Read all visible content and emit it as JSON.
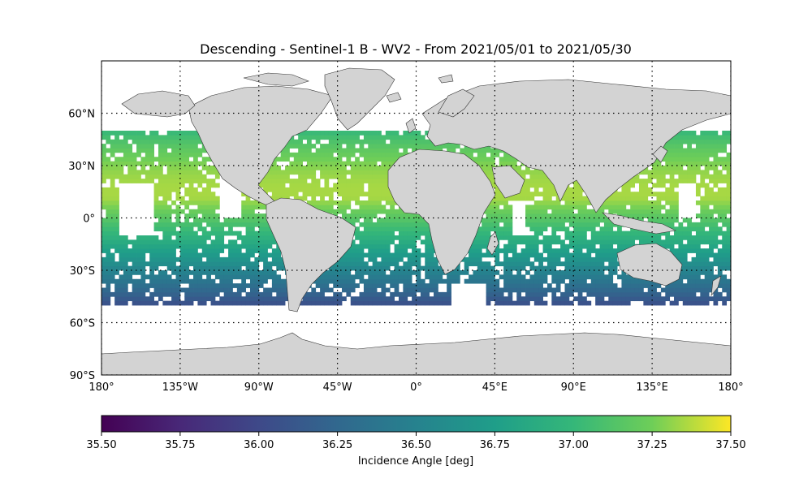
{
  "title": "Descending - Sentinel-1 B - WV2 - From 2021/05/01 to 2021/05/30",
  "map": {
    "lon_range": [
      -180,
      180
    ],
    "lat_range": [
      -90,
      90
    ],
    "lon_ticks": [
      {
        "value": -180,
        "label": "180°"
      },
      {
        "value": -135,
        "label": "135°W"
      },
      {
        "value": -90,
        "label": "90°W"
      },
      {
        "value": -45,
        "label": "45°W"
      },
      {
        "value": 0,
        "label": "0°"
      },
      {
        "value": 45,
        "label": "45°E"
      },
      {
        "value": 90,
        "label": "90°E"
      },
      {
        "value": 135,
        "label": "135°E"
      },
      {
        "value": 180,
        "label": "180°"
      }
    ],
    "lat_ticks": [
      {
        "value": 60,
        "label": "60°N"
      },
      {
        "value": 30,
        "label": "30°N"
      },
      {
        "value": 0,
        "label": "0°"
      },
      {
        "value": -30,
        "label": "30°S"
      },
      {
        "value": -60,
        "label": "60°S"
      },
      {
        "value": -90,
        "label": "90°S"
      }
    ],
    "gridlines": "dotted",
    "land_color": "#d3d3d3",
    "data_lat_range": [
      -50,
      50
    ]
  },
  "colorbar": {
    "label": "Incidence Angle [deg]",
    "colormap": "viridis",
    "vmin": 35.5,
    "vmax": 37.5,
    "tick_labels": [
      "35.50",
      "35.75",
      "36.00",
      "36.25",
      "36.50",
      "36.75",
      "37.00",
      "37.25",
      "37.50"
    ]
  },
  "colors": {
    "land": "#d3d3d3",
    "coast": "#333333",
    "background": "#ffffff"
  }
}
